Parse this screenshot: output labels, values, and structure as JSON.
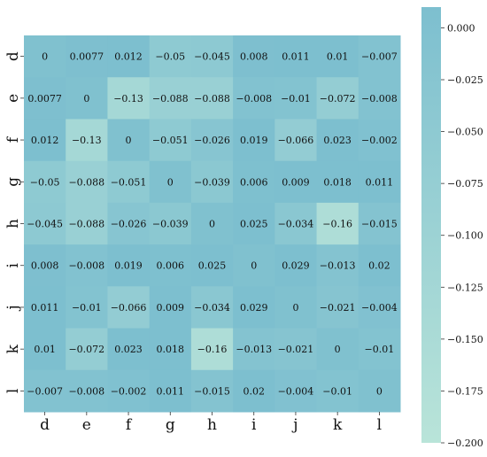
{
  "chart_data": {
    "type": "heatmap",
    "x_labels": [
      "d",
      "e",
      "f",
      "g",
      "h",
      "i",
      "j",
      "k",
      "l"
    ],
    "y_labels": [
      "d",
      "e",
      "f",
      "g",
      "h",
      "i",
      "j",
      "k",
      "l"
    ],
    "values": [
      [
        0,
        0.0077,
        0.012,
        -0.05,
        -0.045,
        0.008,
        0.011,
        0.01,
        -0.007
      ],
      [
        0.0077,
        0,
        -0.13,
        -0.088,
        -0.088,
        -0.008,
        -0.01,
        -0.072,
        -0.008
      ],
      [
        0.012,
        -0.13,
        0,
        -0.051,
        -0.026,
        0.019,
        -0.066,
        0.023,
        -0.002
      ],
      [
        -0.05,
        -0.088,
        -0.051,
        0,
        -0.039,
        0.006,
        0.009,
        0.018,
        0.011
      ],
      [
        -0.045,
        -0.088,
        -0.026,
        -0.039,
        0,
        0.025,
        -0.034,
        -0.16,
        -0.015
      ],
      [
        0.008,
        -0.008,
        0.019,
        0.006,
        0.025,
        0,
        0.029,
        -0.013,
        0.02
      ],
      [
        0.011,
        -0.01,
        -0.066,
        0.009,
        -0.034,
        0.029,
        0,
        -0.021,
        -0.004
      ],
      [
        0.01,
        -0.072,
        0.023,
        0.018,
        -0.16,
        -0.013,
        -0.021,
        0,
        -0.01
      ],
      [
        -0.007,
        -0.008,
        -0.002,
        0.011,
        -0.015,
        0.02,
        -0.004,
        -0.01,
        0
      ]
    ],
    "cell_labels": [
      [
        "0",
        "0.0077",
        "0.012",
        "−0.05",
        "−0.045",
        "0.008",
        "0.011",
        "0.01",
        "−0.007"
      ],
      [
        "0.0077",
        "0",
        "−0.13",
        "−0.088",
        "−0.088",
        "−0.008",
        "−0.01",
        "−0.072",
        "−0.008"
      ],
      [
        "0.012",
        "−0.13",
        "0",
        "−0.051",
        "−0.026",
        "0.019",
        "−0.066",
        "0.023",
        "−0.002"
      ],
      [
        "−0.05",
        "−0.088",
        "−0.051",
        "0",
        "−0.039",
        "0.006",
        "0.009",
        "0.018",
        "0.011"
      ],
      [
        "−0.045",
        "−0.088",
        "−0.026",
        "−0.039",
        "0",
        "0.025",
        "−0.034",
        "−0.16",
        "−0.015"
      ],
      [
        "0.008",
        "−0.008",
        "0.019",
        "0.006",
        "0.025",
        "0",
        "0.029",
        "−0.013",
        "0.02"
      ],
      [
        "0.011",
        "−0.01",
        "−0.066",
        "0.009",
        "−0.034",
        "0.029",
        "0",
        "−0.021",
        "−0.004"
      ],
      [
        "0.01",
        "−0.072",
        "0.023",
        "0.018",
        "−0.16",
        "−0.013",
        "−0.021",
        "0",
        "−0.01"
      ],
      [
        "−0.007",
        "−0.008",
        "−0.002",
        "0.011",
        "−0.015",
        "0.02",
        "−0.004",
        "−0.01",
        "0"
      ]
    ],
    "vmin": -0.2,
    "vmax": 0.01,
    "colorbar_ticks": [
      0.0,
      -0.025,
      -0.05,
      -0.075,
      -0.1,
      -0.125,
      -0.15,
      -0.175,
      -0.2
    ],
    "colorbar_tick_labels": [
      "0.000",
      "−0.025",
      "−0.050",
      "−0.075",
      "−0.100",
      "−0.125",
      "−0.150",
      "−0.175",
      "−0.200"
    ],
    "colors": {
      "high": "#7dbfcf",
      "low": "#b9e4d9",
      "text": "#111111",
      "tick": "#333333"
    },
    "title": "",
    "xlabel": "",
    "ylabel": ""
  }
}
